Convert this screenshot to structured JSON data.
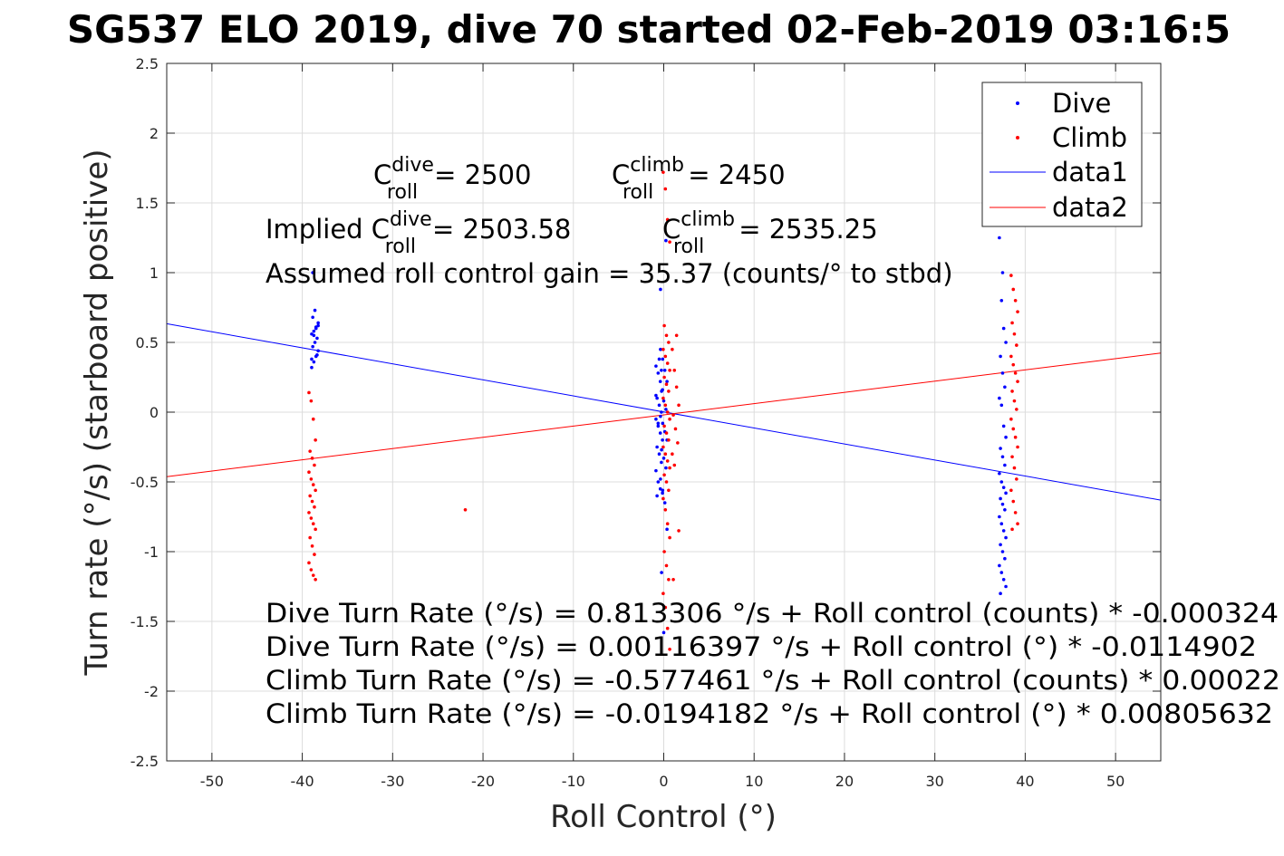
{
  "chart_data": {
    "type": "scatter",
    "title": "SG537 ELO 2019, dive 70 started 02-Feb-2019 03:16:5",
    "xlabel": "Roll Control (°)",
    "ylabel": "Turn rate (°/s) (starboard positive)",
    "xlim": [
      -55,
      55
    ],
    "ylim": [
      -2.5,
      2.5
    ],
    "xticks": [
      -50,
      -40,
      -30,
      -20,
      -10,
      0,
      10,
      20,
      30,
      40,
      50
    ],
    "xtick_labels": [
      "-50",
      "-40",
      "-30",
      "-20",
      "-10",
      "0",
      "10",
      "20",
      "30",
      "40",
      "50"
    ],
    "yticks": [
      -2.5,
      -2,
      -1.5,
      -1,
      -0.5,
      0,
      0.5,
      1,
      1.5,
      2,
      2.5
    ],
    "ytick_labels": [
      "-2.5",
      "-2",
      "-1.5",
      "-1",
      "-0.5",
      "0",
      "0.5",
      "1",
      "1.5",
      "2",
      "2.5"
    ],
    "grid": true,
    "legend_position": "top-right",
    "colors": {
      "dive": "#0000ff",
      "climb": "#ff0000"
    },
    "series": [
      {
        "name": "Dive",
        "kind": "points",
        "color": "#0000ff",
        "clusters": [
          {
            "x": -38.6,
            "y": [
              0.32,
              0.36,
              0.4,
              0.44,
              0.47,
              0.5,
              0.53,
              0.56,
              0.58,
              0.61,
              0.64,
              0.68,
              0.73,
              0.41,
              0.38,
              0.55,
              0.6,
              0.62,
              1.0
            ]
          },
          {
            "x": -0.5,
            "y": [
              0.33,
              0.28,
              0.22,
              0.16,
              0.1,
              0.05,
              0.0,
              -0.05,
              -0.1,
              -0.15,
              -0.2,
              -0.25,
              -0.3,
              -0.36,
              -0.42,
              -0.5,
              -0.55,
              -0.58,
              -0.6,
              0.38,
              0.3,
              0.12,
              -0.08
            ]
          },
          {
            "x": 0.0,
            "y": [
              0.45,
              0.38,
              0.3,
              0.22,
              0.15,
              0.08,
              0.02,
              -0.03,
              -0.08,
              -0.14,
              -0.2,
              -0.27,
              -0.33,
              -0.4,
              -0.48,
              -0.56,
              -0.65,
              -0.84,
              -1.15,
              -1.58,
              1.23,
              0.88
            ]
          },
          {
            "x": 37.5,
            "y": [
              1.25,
              0.8,
              0.6,
              0.5,
              0.4,
              0.28,
              0.18,
              0.1,
              0.05,
              -0.1,
              -0.18,
              -0.26,
              -0.32,
              -0.38,
              -0.44,
              -0.5,
              -0.54,
              -0.58,
              -0.62,
              -0.66,
              -0.7,
              -0.75,
              -0.8,
              -0.85,
              -0.9,
              -0.95,
              -1.0,
              -1.05,
              -1.1,
              -1.15,
              -1.2,
              -1.25,
              -1.3,
              1.0
            ]
          }
        ]
      },
      {
        "name": "Climb",
        "kind": "points",
        "color": "#ff0000",
        "clusters": [
          {
            "x": -38.9,
            "y": [
              0.14,
              0.08,
              -0.05,
              -0.2,
              -0.28,
              -0.33,
              -0.38,
              -0.43,
              -0.48,
              -0.52,
              -0.56,
              -0.6,
              -0.64,
              -0.68,
              -0.72,
              -0.76,
              -0.8,
              -0.84,
              -0.9,
              -0.96,
              -1.02,
              -1.08,
              -1.13,
              -1.17,
              -1.2
            ]
          },
          {
            "x": -21.6,
            "y": [
              -0.7
            ]
          },
          {
            "x": 0.3,
            "y": [
              1.72,
              1.6,
              1.38,
              1.22,
              0.62,
              0.55,
              0.5,
              0.45,
              0.4,
              0.35,
              0.3,
              0.25,
              0.2,
              0.15,
              0.1,
              0.05,
              0.0,
              -0.05,
              -0.1,
              -0.15,
              -0.2,
              -0.25,
              -0.3,
              -0.35,
              -0.4,
              -0.45,
              -0.5,
              -0.56,
              -0.62,
              -0.7,
              -0.8,
              -0.9,
              -1.0,
              -1.1,
              -1.2,
              -1.3,
              -1.4,
              -1.55,
              -1.7
            ]
          },
          {
            "x": 1.3,
            "y": [
              0.45,
              0.3,
              0.18,
              0.05,
              -0.02,
              -0.12,
              -0.22,
              -0.3,
              -0.38,
              0.55,
              -0.85,
              -1.2
            ]
          },
          {
            "x": 38.8,
            "y": [
              0.98,
              0.88,
              0.8,
              0.72,
              0.64,
              0.56,
              0.48,
              0.4,
              0.34,
              0.28,
              0.22,
              0.15,
              0.08,
              0.02,
              -0.05,
              -0.12,
              -0.18,
              -0.25,
              -0.32,
              -0.4,
              -0.48,
              -0.56,
              -0.64,
              -0.72,
              -0.8,
              -0.84
            ]
          }
        ]
      },
      {
        "name": "data1",
        "kind": "line",
        "color": "#0000ff",
        "x": [
          -55,
          55
        ],
        "y": [
          0.6336,
          -0.6306
        ]
      },
      {
        "name": "data2",
        "kind": "line",
        "color": "#ff0000",
        "x": [
          -55,
          55
        ],
        "y": [
          -0.4625,
          0.4237
        ]
      }
    ],
    "annotations": {
      "c_dive_label": "C",
      "c_dive_sup": "dive",
      "c_dive_sub": "roll",
      "c_dive_value": "= 2500",
      "c_climb_label": "C",
      "c_climb_sup": "climb",
      "c_climb_sub": "roll",
      "c_climb_value": "= 2450",
      "implied_prefix": "Implied C",
      "implied_dive_sup": "dive",
      "implied_dive_sub": "roll",
      "implied_dive_value": "= 2503.58",
      "implied_climb_label": "C",
      "implied_climb_sup": "climb",
      "implied_climb_sub": "roll",
      "implied_climb_value": "= 2535.25",
      "gain": "Assumed roll control gain = 35.37 (counts/° to stbd)",
      "eq1": "Dive Turn Rate (°/s) = 0.813306 °/s + Roll control (counts) * -0.000324",
      "eq2": "Dive Turn Rate (°/s) = 0.00116397 °/s + Roll control (°) * -0.0114902",
      "eq3": "Climb Turn Rate (°/s) = -0.577461 °/s + Roll control (counts) * 0.00022",
      "eq4": "Climb Turn Rate (°/s) = -0.0194182 °/s + Roll control (°) * 0.00805632"
    }
  }
}
